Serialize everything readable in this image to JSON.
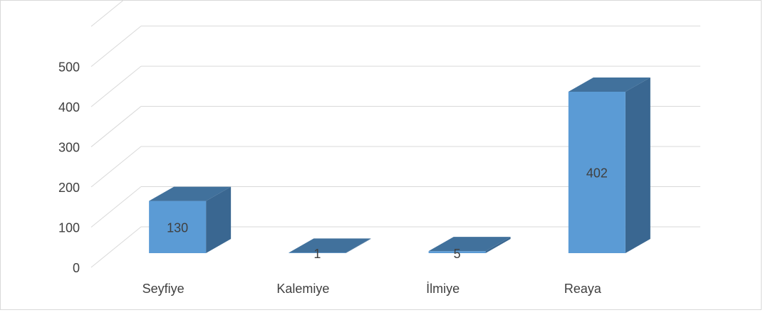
{
  "chart_data": {
    "type": "bar",
    "title": "",
    "xlabel": "",
    "ylabel": "",
    "categories": [
      "Seyfiye",
      "Kalemiye",
      "İlmiye",
      "Reaya"
    ],
    "values": [
      130,
      1,
      5,
      402
    ],
    "data_labels": [
      "130",
      "1",
      "5",
      "402"
    ],
    "y_ticks": [
      "0",
      "100",
      "200",
      "300",
      "400",
      "500"
    ],
    "y_tick_values": [
      0,
      100,
      200,
      300,
      400,
      500
    ],
    "ylim": [
      0,
      600
    ],
    "grid": true,
    "legend": "none",
    "style": "3d-column",
    "colors": {
      "bar_front": "#5B9BD5",
      "bar_top": "#41719C",
      "bar_side": "#3A6791",
      "gridline": "#D9D9D9",
      "text": "#404040",
      "border": "#D9D9D9"
    }
  }
}
